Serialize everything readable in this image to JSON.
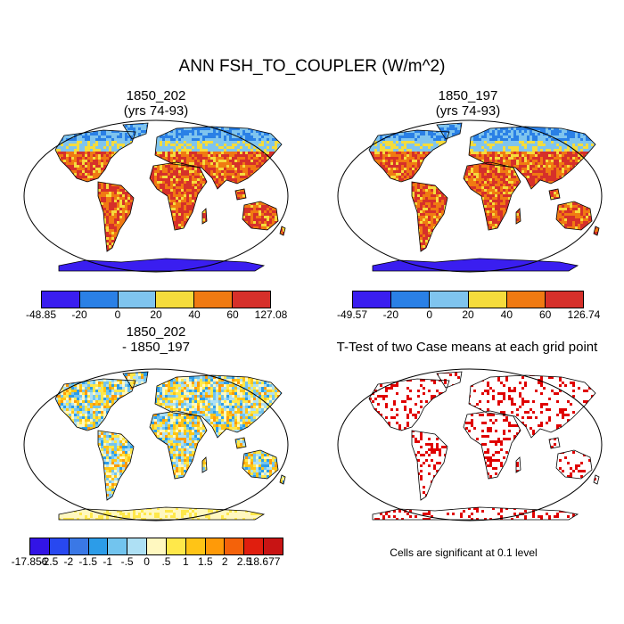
{
  "figure": {
    "title": "ANN FSH_TO_COUPLER (W/m^2)"
  },
  "panels": [
    {
      "id": "case1",
      "title": "1850_202\n(yrs 74-93)",
      "colorbar": {
        "colors": [
          "#3a1ef0",
          "#2a80e6",
          "#7fc4ee",
          "#f5dc3c",
          "#f07a12",
          "#d6302a"
        ],
        "labels": [
          "-48.85",
          "-20",
          "0",
          "20",
          "40",
          "60",
          "127.08"
        ]
      }
    },
    {
      "id": "case2",
      "title": "1850_197\n(yrs 74-93)",
      "colorbar": {
        "colors": [
          "#3a1ef0",
          "#2a80e6",
          "#7fc4ee",
          "#f5dc3c",
          "#f07a12",
          "#d6302a"
        ],
        "labels": [
          "-49.57",
          "-20",
          "0",
          "20",
          "40",
          "60",
          "126.74"
        ]
      }
    },
    {
      "id": "difference",
      "title": "1850_202\n- 1850_197",
      "colorbar": {
        "colors": [
          "#3214e6",
          "#2848f0",
          "#3a78e6",
          "#2c9ce8",
          "#72c4ee",
          "#aee0f4",
          "#fff8c0",
          "#ffe84a",
          "#ffc416",
          "#ff9a08",
          "#f4620a",
          "#e01e0e",
          "#c81414"
        ],
        "labels": [
          "-17.856",
          "-2.5",
          "-2",
          "-1.5",
          "-1",
          "-.5",
          "0",
          ".5",
          "1",
          "1.5",
          "2",
          "2.5",
          "18.677"
        ]
      }
    },
    {
      "id": "ttest",
      "title": "T-Test of two Case means at each grid point",
      "note": "Cells are significant at 0.1 level",
      "significant_color": "#e00000"
    }
  ]
}
